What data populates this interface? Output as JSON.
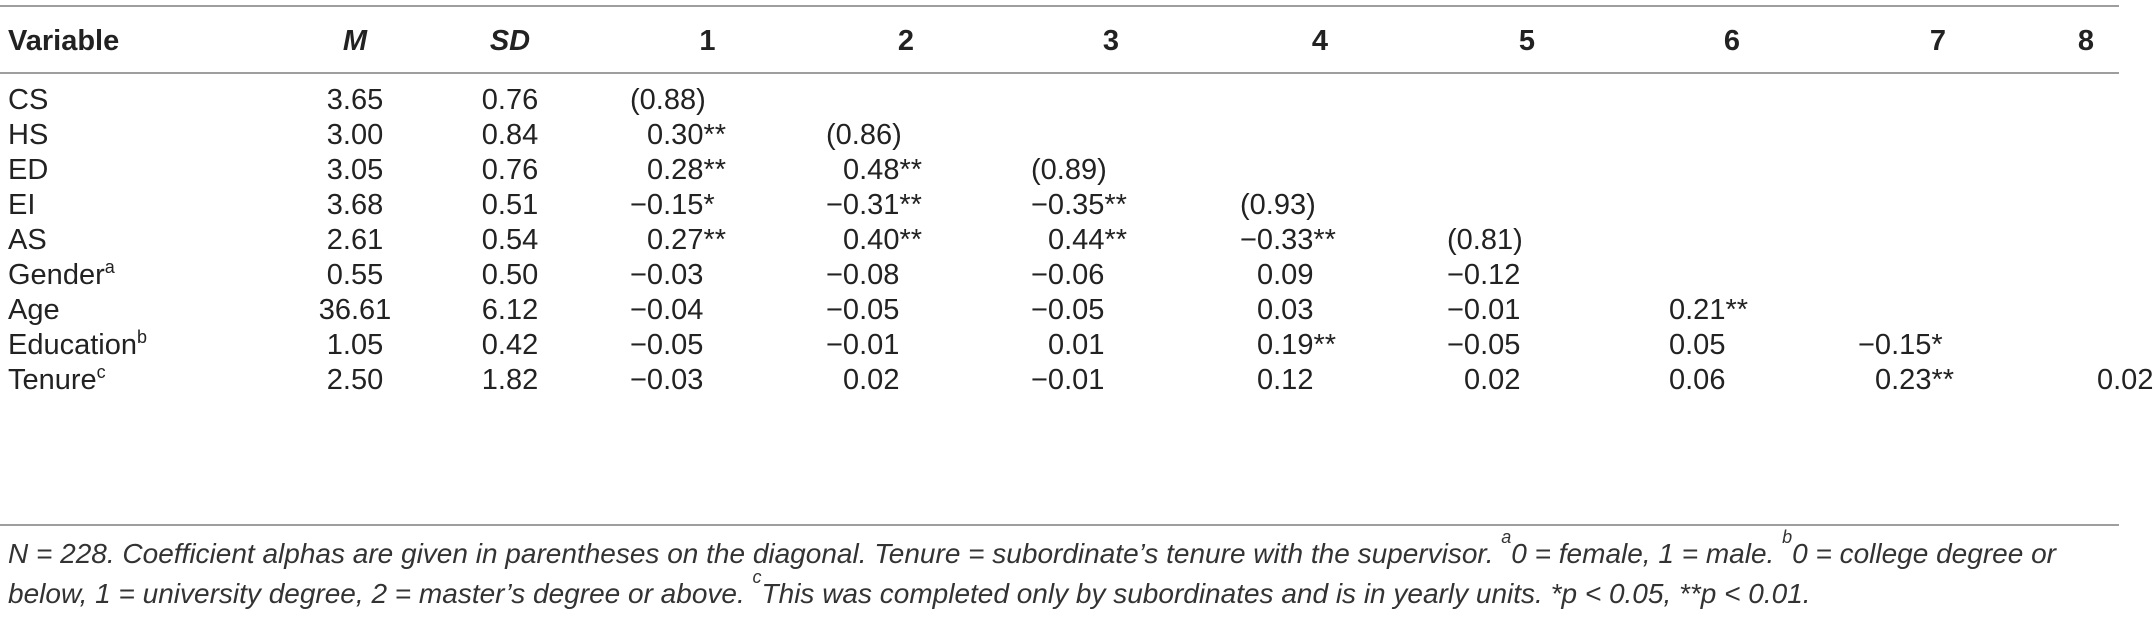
{
  "table": {
    "headers": [
      "Variable",
      "M",
      "SD",
      "1",
      "2",
      "3",
      "4",
      "5",
      "6",
      "7",
      "8"
    ],
    "rows": [
      {
        "label": "CS",
        "sup": "",
        "m": "3.65",
        "sd": "0.76",
        "cells": [
          "(0.88)",
          "",
          "",
          "",
          "",
          "",
          "",
          ""
        ]
      },
      {
        "label": "HS",
        "sup": "",
        "m": "3.00",
        "sd": "0.84",
        "cells": [
          "0.30**",
          "(0.86)",
          "",
          "",
          "",
          "",
          "",
          ""
        ]
      },
      {
        "label": "ED",
        "sup": "",
        "m": "3.05",
        "sd": "0.76",
        "cells": [
          "0.28**",
          "0.48**",
          "(0.89)",
          "",
          "",
          "",
          "",
          ""
        ]
      },
      {
        "label": "EI",
        "sup": "",
        "m": "3.68",
        "sd": "0.51",
        "cells": [
          "−0.15*",
          "−0.31**",
          "−0.35**",
          "(0.93)",
          "",
          "",
          "",
          ""
        ]
      },
      {
        "label": "AS",
        "sup": "",
        "m": "2.61",
        "sd": "0.54",
        "cells": [
          "0.27**",
          "0.40**",
          "0.44**",
          "−0.33**",
          "(0.81)",
          "",
          "",
          ""
        ]
      },
      {
        "label": "Gender",
        "sup": "a",
        "m": "0.55",
        "sd": "0.50",
        "cells": [
          "−0.03",
          "−0.08",
          "−0.06",
          "0.09",
          "−0.12",
          "",
          "",
          ""
        ]
      },
      {
        "label": "Age",
        "sup": "",
        "m": "36.61",
        "sd": "6.12",
        "cells": [
          "−0.04",
          "−0.05",
          "−0.05",
          "0.03",
          "−0.01",
          "0.21**",
          "",
          ""
        ]
      },
      {
        "label": "Education",
        "sup": "b",
        "m": "1.05",
        "sd": "0.42",
        "cells": [
          "−0.05",
          "−0.01",
          "0.01",
          "0.19**",
          "−0.05",
          "0.05",
          "−0.15*",
          ""
        ]
      },
      {
        "label": "Tenure",
        "sup": "c",
        "m": "2.50",
        "sd": "1.82",
        "cells": [
          "−0.03",
          "0.02",
          "−0.01",
          "0.12",
          "0.02",
          "0.06",
          "0.23**",
          "0.02"
        ]
      }
    ]
  },
  "footnote": {
    "line1_a": "N = 228. Coefficient alphas are given in parentheses on the diagonal. Tenure = subordinate’s tenure with the supervisor. ",
    "sup_a": "a",
    "line1_b": "0 = female, 1 = male. ",
    "sup_b": "b",
    "line1_c": "0 = college degree or",
    "line2_a": "below, 1 = university degree, 2 = master’s degree or above. ",
    "sup_c": "c",
    "line2_b": "This was completed only by subordinates and is in yearly units. *p < 0.05, **p < 0.01."
  }
}
